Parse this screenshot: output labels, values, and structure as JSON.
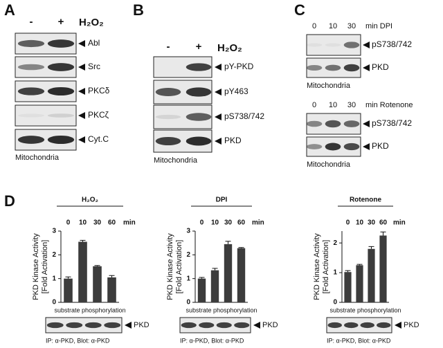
{
  "panels": [
    {
      "letter": "A",
      "minus": "-",
      "plus": "+",
      "treatment": "H₂O₂",
      "blots": [
        "Abl",
        "Src",
        "PKCδ",
        "PKCζ",
        "Cyt.C"
      ],
      "footer": "Mitochondria"
    },
    {
      "letter": "B",
      "minus": "-",
      "plus": "+",
      "treatment": "H₂O₂",
      "blots": [
        "pY-PKD",
        "pY463",
        "pS738/742",
        "PKD"
      ],
      "footer": "Mitochondria"
    },
    {
      "letter": "C",
      "groups": [
        {
          "lanes": [
            "0",
            "10",
            "30"
          ],
          "unit": "min DPI",
          "blots": [
            "pS738/742",
            "PKD"
          ],
          "footer": "Mitochondria"
        },
        {
          "lanes": [
            "0",
            "10",
            "30"
          ],
          "unit": "min Rotenone",
          "blots": [
            "pS738/742",
            "PKD"
          ],
          "footer": "Mitochondria"
        }
      ]
    }
  ],
  "panel_d": {
    "letter": "D"
  },
  "chart_data": [
    {
      "type": "bar",
      "title": "H₂O₂",
      "x_unit": "min",
      "ylabel": [
        "PKD Kinase Activity",
        "[Fold Activation]"
      ],
      "categories": [
        "0",
        "10",
        "30",
        "60"
      ],
      "values": [
        1.0,
        2.55,
        1.52,
        1.05
      ],
      "errors": [
        0.07,
        0.06,
        0.03,
        0.08
      ],
      "color": "#3c3c3c",
      "ylim": [
        0,
        3
      ],
      "yticks": [
        0,
        1,
        2,
        3
      ],
      "caption": "substrate phosphorylation",
      "blot_label": "PKD",
      "blot_footer": "IP: α-PKD, Blot: α-PKD"
    },
    {
      "type": "bar",
      "title": "DPI",
      "x_unit": "min",
      "ylabel": [
        "PKD Kinase Activity",
        "[Fold Activation]"
      ],
      "categories": [
        "0",
        "10",
        "30",
        "60"
      ],
      "values": [
        1.0,
        1.35,
        2.45,
        2.28
      ],
      "errors": [
        0.05,
        0.08,
        0.12,
        0.03
      ],
      "color": "#3c3c3c",
      "ylim": [
        0,
        3
      ],
      "yticks": [
        0,
        1,
        2,
        3
      ],
      "caption": "substrate phosphorylation",
      "blot_label": "PKD",
      "blot_footer": "IP: α-PKD, Blot: α-PKD"
    },
    {
      "type": "bar",
      "title": "Rotenone",
      "x_unit": "min",
      "ylabel": [
        "PKD Kinase Activity",
        "[Fold Activation]"
      ],
      "categories": [
        "0",
        "10",
        "30",
        "60"
      ],
      "values": [
        1.02,
        1.25,
        1.8,
        2.25
      ],
      "errors": [
        0.05,
        0.03,
        0.08,
        0.12
      ],
      "color": "#3c3c3c",
      "ylim": [
        0,
        2.4
      ],
      "yticks": [
        0,
        1,
        2
      ],
      "caption": "substrate phosphorylation",
      "blot_label": "PKD",
      "blot_footer": "IP: α-PKD, Blot: α-PKD"
    }
  ]
}
